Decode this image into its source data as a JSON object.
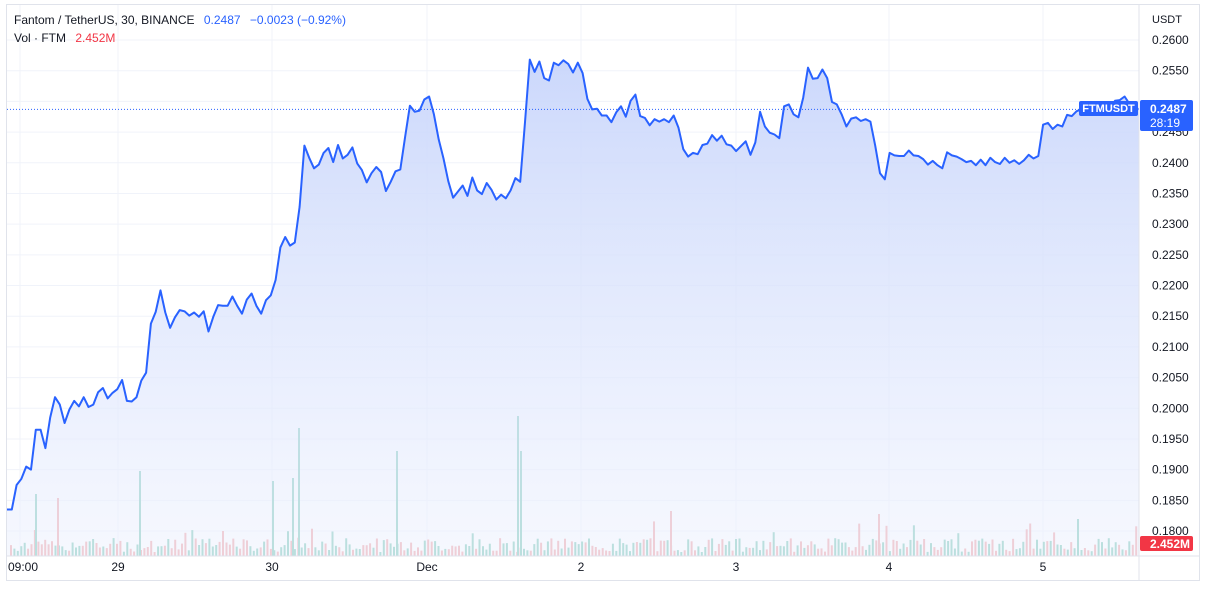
{
  "legend": {
    "pair": "Fantom / TetherUS, 30, BINANCE",
    "price": "0.2487",
    "change": "−0.0023 (−0.92%)",
    "vol_label": "Vol · FTM",
    "vol_value": "2.452M"
  },
  "axis": {
    "currency": "USDT",
    "price_ticks": [
      "0.2600",
      "0.2550",
      "0.2500",
      "0.2450",
      "0.2400",
      "0.2350",
      "0.2300",
      "0.2250",
      "0.2200",
      "0.2150",
      "0.2100",
      "0.2050",
      "0.2000",
      "0.1950",
      "0.1900",
      "0.1850",
      "0.1800"
    ],
    "time_ticks": [
      "09:00",
      "29",
      "30",
      "Dec",
      "2",
      "3",
      "4",
      "5"
    ]
  },
  "badges": {
    "symbol": "FTMUSDT",
    "price": "0.2487",
    "countdown": "28:19",
    "volume": "2.452M"
  },
  "colors": {
    "line": "#2962ff",
    "area_top": "#c9d6fb",
    "volume_up": "#7cc8b6",
    "volume_down": "#f0a3a6",
    "grid": "#f0f3fa"
  },
  "chart_data": {
    "type": "area",
    "title": "Fantom / TetherUS, 30, BINANCE",
    "ylabel": "USDT",
    "ylim": [
      0.1765,
      0.2625
    ],
    "x_ticks": [
      "09:00",
      "29",
      "30",
      "Dec",
      "2",
      "3",
      "4",
      "5"
    ],
    "close": [
      0.1835,
      0.1835,
      0.1875,
      0.1885,
      0.1905,
      0.19,
      0.1965,
      0.1965,
      0.1935,
      0.1985,
      0.2018,
      0.2006,
      0.1976,
      0.1998,
      0.2012,
      0.2003,
      0.2018,
      0.2002,
      0.2006,
      0.2026,
      0.2033,
      0.2016,
      0.2025,
      0.2031,
      0.2046,
      0.2012,
      0.2011,
      0.2018,
      0.2045,
      0.2058,
      0.2138,
      0.2157,
      0.2192,
      0.2156,
      0.2131,
      0.2148,
      0.216,
      0.2158,
      0.2151,
      0.2156,
      0.2149,
      0.2158,
      0.2125,
      0.2149,
      0.2168,
      0.2167,
      0.2167,
      0.2182,
      0.2167,
      0.2154,
      0.2177,
      0.2187,
      0.2167,
      0.2154,
      0.2176,
      0.2184,
      0.2209,
      0.2262,
      0.2279,
      0.2265,
      0.227,
      0.2328,
      0.2428,
      0.2408,
      0.2391,
      0.2397,
      0.2416,
      0.2424,
      0.2401,
      0.2429,
      0.2407,
      0.2413,
      0.2425,
      0.2399,
      0.2388,
      0.2368,
      0.2383,
      0.2393,
      0.2385,
      0.2354,
      0.2369,
      0.2386,
      0.2389,
      0.2442,
      0.2493,
      0.2483,
      0.2485,
      0.2503,
      0.2508,
      0.2479,
      0.2438,
      0.2407,
      0.237,
      0.2343,
      0.2353,
      0.2363,
      0.2346,
      0.2376,
      0.2355,
      0.2349,
      0.2367,
      0.2356,
      0.234,
      0.2348,
      0.2342,
      0.2355,
      0.2375,
      0.2369,
      0.2466,
      0.2568,
      0.2548,
      0.2565,
      0.2538,
      0.2534,
      0.2563,
      0.2559,
      0.2567,
      0.2561,
      0.2547,
      0.2563,
      0.2546,
      0.2504,
      0.2487,
      0.2488,
      0.2477,
      0.2477,
      0.2466,
      0.2482,
      0.2492,
      0.2475,
      0.2501,
      0.2511,
      0.2476,
      0.2473,
      0.2461,
      0.2471,
      0.2467,
      0.2471,
      0.2466,
      0.2477,
      0.2457,
      0.2422,
      0.241,
      0.2416,
      0.2414,
      0.2429,
      0.2431,
      0.2445,
      0.2436,
      0.2444,
      0.243,
      0.2428,
      0.2419,
      0.2427,
      0.2435,
      0.2413,
      0.2433,
      0.2483,
      0.2459,
      0.2449,
      0.2446,
      0.244,
      0.2492,
      0.2495,
      0.2479,
      0.2474,
      0.2506,
      0.2555,
      0.2537,
      0.2538,
      0.2552,
      0.2538,
      0.2499,
      0.2495,
      0.2479,
      0.2459,
      0.2472,
      0.2474,
      0.2468,
      0.2471,
      0.2467,
      0.2428,
      0.2383,
      0.2373,
      0.2416,
      0.2412,
      0.2411,
      0.2411,
      0.242,
      0.2412,
      0.2411,
      0.2406,
      0.2397,
      0.2403,
      0.2396,
      0.2391,
      0.2417,
      0.2412,
      0.241,
      0.2406,
      0.2401,
      0.2403,
      0.2396,
      0.2405,
      0.2396,
      0.2408,
      0.2401,
      0.2398,
      0.2408,
      0.24,
      0.2404,
      0.2398,
      0.2404,
      0.2413,
      0.2407,
      0.2411,
      0.2462,
      0.2465,
      0.2455,
      0.2462,
      0.2459,
      0.2478,
      0.2476,
      0.2484,
      0.2487,
      0.2481,
      0.2485,
      0.2489,
      0.2494,
      0.2494,
      0.2488,
      0.2501,
      0.2502,
      0.2508,
      0.2496,
      0.2491,
      0.2487
    ]
  }
}
